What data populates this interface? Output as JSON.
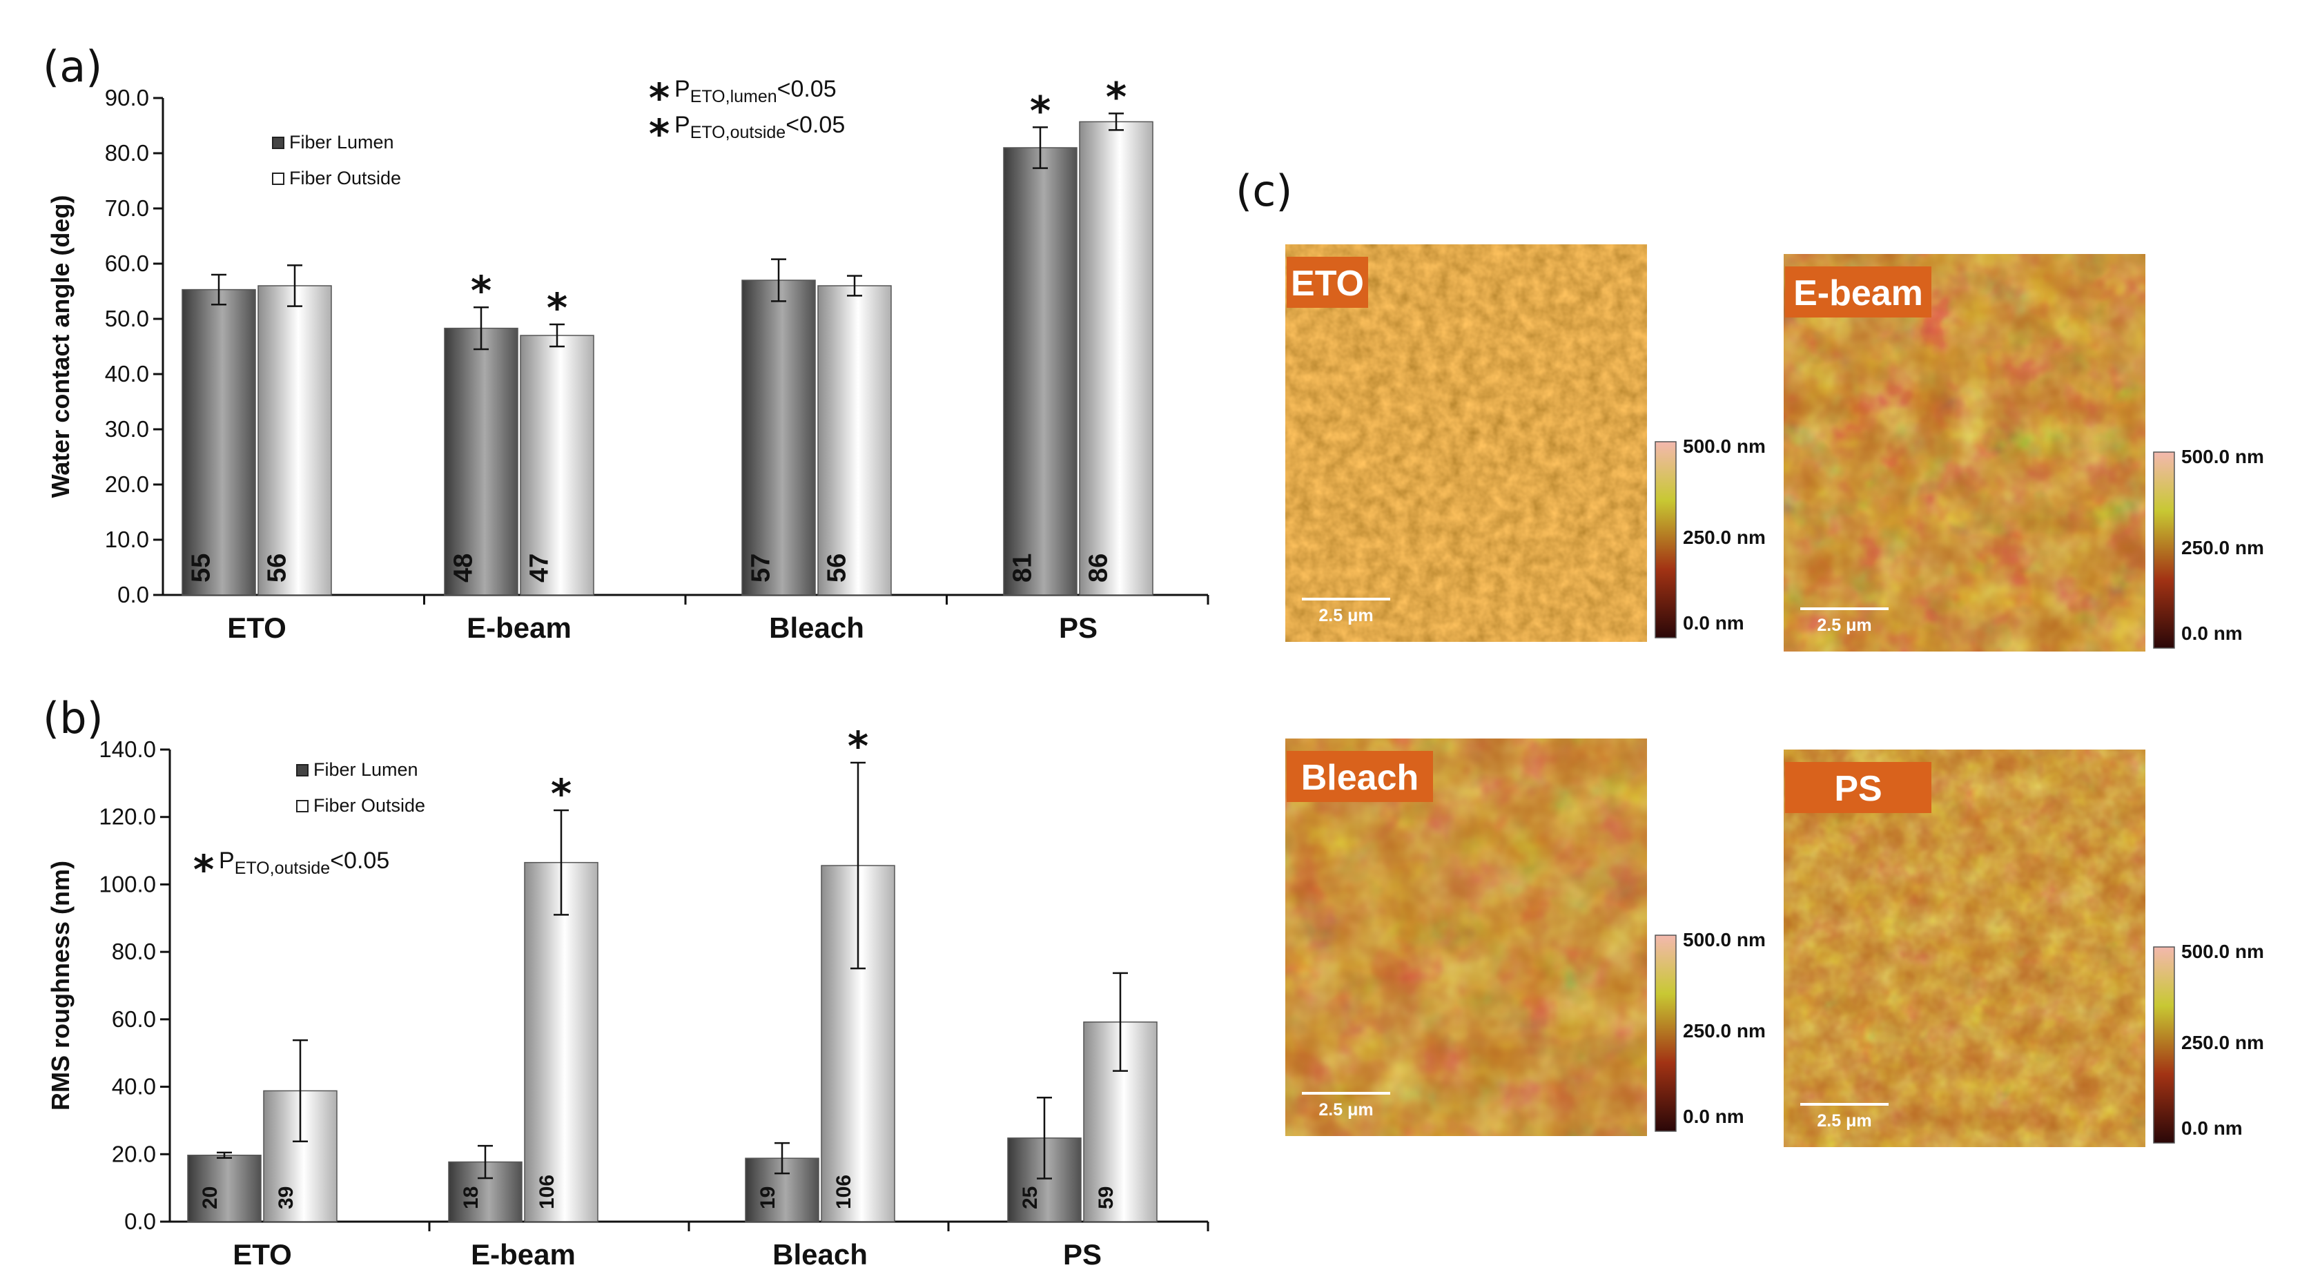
{
  "panel_labels": [
    "(a)",
    "(b)",
    "(c)"
  ],
  "colors": {
    "lumen_dark": "#3a3a3a",
    "lumen_light": "#a9a9a9",
    "outside_dark": "#8c8c8c",
    "outside_light": "#ffffff",
    "afm_label_bg": "#d9621c"
  },
  "chart_data": [
    {
      "type": "bar",
      "panel": "(a)",
      "ylabel": "Water contact angle (deg)",
      "xlabel": "",
      "categories": [
        "ETO",
        "E-beam",
        "Bleach",
        "PS"
      ],
      "ylim": [
        0,
        90
      ],
      "yticks": [
        "0.0",
        "10.0",
        "20.0",
        "30.0",
        "40.0",
        "50.0",
        "60.0",
        "70.0",
        "80.0",
        "90.0"
      ],
      "legend": {
        "placement": "top-left",
        "entries": [
          "Fiber Lumen",
          "Fiber Outside"
        ]
      },
      "series": [
        {
          "name": "Fiber Lumen",
          "values": [
            55.3,
            48.3,
            57.0,
            81.0
          ],
          "errors": [
            2.7,
            3.8,
            3.8,
            3.7
          ],
          "labels": [
            "55",
            "48",
            "57",
            "81"
          ],
          "stars": [
            false,
            true,
            false,
            true
          ]
        },
        {
          "name": "Fiber Outside",
          "values": [
            56.0,
            47.0,
            56.0,
            85.7
          ],
          "errors": [
            3.7,
            2.0,
            1.8,
            1.5
          ],
          "labels": [
            "56",
            "47",
            "56",
            "86"
          ],
          "stars": [
            false,
            true,
            false,
            true
          ]
        }
      ],
      "significance": [
        {
          "base": "P",
          "sub": "ETO,lumen",
          "rest": "<0.05"
        },
        {
          "base": "P",
          "sub": "ETO,outside",
          "rest": "<0.05"
        }
      ],
      "star_symbol": "*"
    },
    {
      "type": "bar",
      "panel": "(b)",
      "ylabel": "RMS roughness (nm)",
      "xlabel": "",
      "categories": [
        "ETO",
        "E-beam",
        "Bleach",
        "PS"
      ],
      "ylim": [
        0,
        140
      ],
      "yticks": [
        "0.0",
        "20.0",
        "40.0",
        "60.0",
        "80.0",
        "100.0",
        "120.0",
        "140.0"
      ],
      "legend": {
        "placement": "top-center",
        "entries": [
          "Fiber Lumen",
          "Fiber Outside"
        ]
      },
      "series": [
        {
          "name": "Fiber Lumen",
          "values": [
            19.7,
            17.7,
            18.8,
            24.8
          ],
          "errors": [
            0.8,
            4.8,
            4.5,
            12.0
          ],
          "labels": [
            "20",
            "18",
            "19",
            "25"
          ],
          "stars": [
            false,
            false,
            false,
            false
          ]
        },
        {
          "name": "Fiber Outside",
          "values": [
            38.8,
            106.5,
            105.6,
            59.2
          ],
          "errors": [
            15.0,
            15.5,
            30.5,
            14.5
          ],
          "labels": [
            "39",
            "106",
            "106",
            "59"
          ],
          "stars": [
            false,
            true,
            true,
            false
          ]
        }
      ],
      "significance": [
        {
          "base": "P",
          "sub": "ETO,outside",
          "rest": "<0.05"
        }
      ],
      "star_symbol": "*"
    }
  ],
  "afm_panels": [
    {
      "label": "ETO",
      "scale_bar": "2.5 μm",
      "colorbar": [
        "500.0 nm",
        "250.0 nm",
        "0.0 nm"
      ]
    },
    {
      "label": "E-beam",
      "scale_bar": "2.5 μm",
      "colorbar": [
        "500.0 nm",
        "250.0 nm",
        "0.0 nm"
      ]
    },
    {
      "label": "Bleach",
      "scale_bar": "2.5 μm",
      "colorbar": [
        "500.0 nm",
        "250.0 nm",
        "0.0 nm"
      ]
    },
    {
      "label": "PS",
      "scale_bar": "2.5 μm",
      "colorbar": [
        "500.0 nm",
        "250.0 nm",
        "0.0 nm"
      ]
    }
  ]
}
